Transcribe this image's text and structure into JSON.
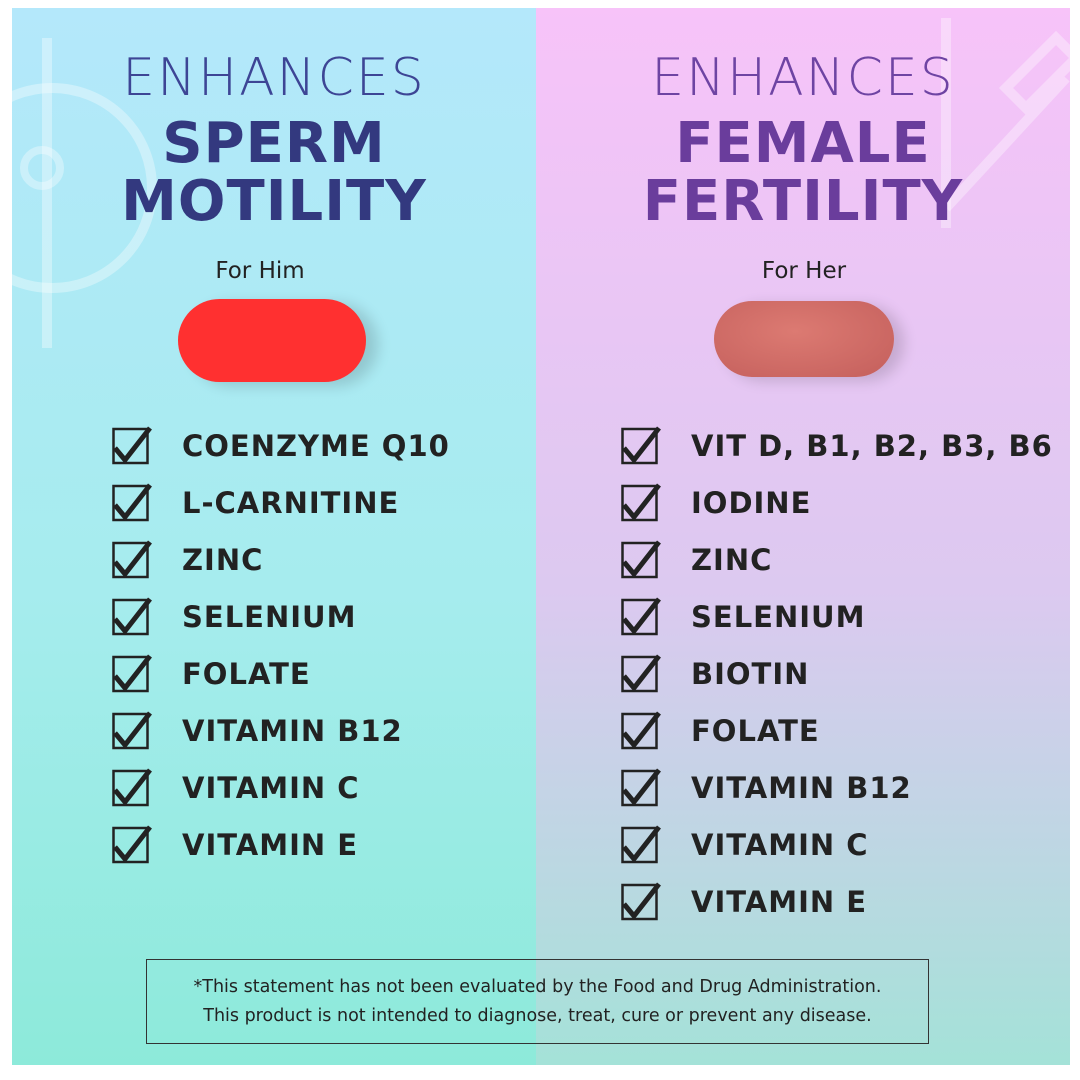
{
  "left": {
    "heading": [
      "ENHANCES",
      "SPERM",
      "MOTILITY"
    ],
    "label": "For Him",
    "items": [
      "COENZYME Q10",
      "L-CARNITINE",
      "ZINC",
      "SELENIUM",
      "FOLATE",
      "VITAMIN B12",
      "VITAMIN C",
      "VITAMIN E"
    ]
  },
  "right": {
    "heading": [
      "ENHANCES",
      "FEMALE",
      "FERTILITY"
    ],
    "label": "For Her",
    "items": [
      "VIT D, B1, B2, B3, B6",
      "IODINE",
      "ZINC",
      "SELENIUM",
      "BIOTIN",
      "FOLATE",
      "VITAMIN B12",
      "VITAMIN C",
      "VITAMIN E"
    ]
  },
  "disclaimer": [
    "*This statement has not been evaluated by the Food and Drug Administration.",
    "This product is not intended to diagnose, treat, cure or prevent any disease."
  ]
}
